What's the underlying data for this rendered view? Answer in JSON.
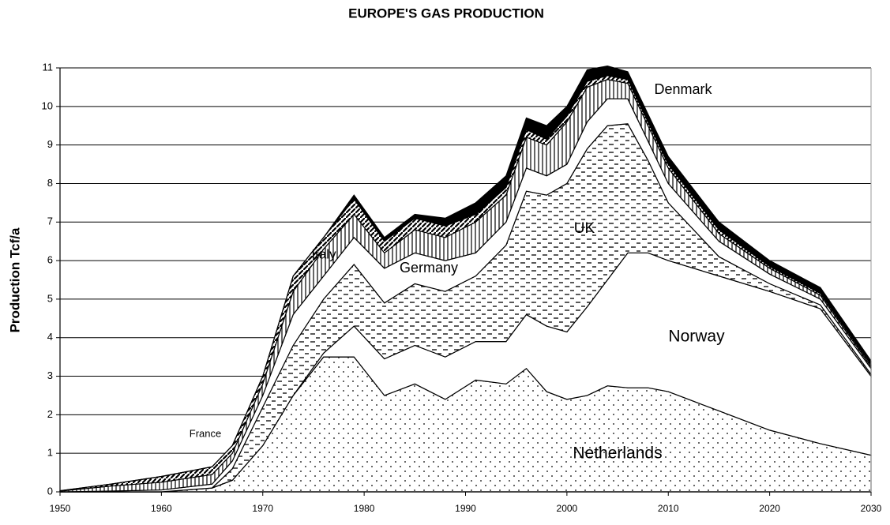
{
  "chart_data": {
    "type": "stacked_area",
    "title": "EUROPE'S GAS PRODUCTION",
    "y_label": "Production Tcf/a",
    "x": [
      1950,
      1955,
      1960,
      1965,
      1967,
      1970,
      1973,
      1976,
      1979,
      1982,
      1985,
      1988,
      1991,
      1994,
      1996,
      1998,
      2000,
      2002,
      2004,
      2006,
      2008,
      2010,
      2015,
      2020,
      2025,
      2030
    ],
    "series": [
      {
        "name": "Netherlands",
        "color": "#ffffff",
        "pattern": "dots",
        "values": [
          0,
          0,
          0,
          0.1,
          0.3,
          1.2,
          2.5,
          3.5,
          3.5,
          2.5,
          2.8,
          2.4,
          2.9,
          2.8,
          3.2,
          2.6,
          2.4,
          2.5,
          2.75,
          2.7,
          2.7,
          2.6,
          2.1,
          1.6,
          1.25,
          0.95
        ]
      },
      {
        "name": "Norway",
        "color": "#ffffff",
        "pattern": "none",
        "values": [
          0,
          0,
          0,
          0,
          0,
          0,
          0,
          0.1,
          0.8,
          0.95,
          1.0,
          1.1,
          1.0,
          1.1,
          1.4,
          1.7,
          1.75,
          2.3,
          2.75,
          3.5,
          3.5,
          3.4,
          3.5,
          3.6,
          3.5,
          2.05
        ]
      },
      {
        "name": "UK",
        "color": "#ffffff",
        "pattern": "dashes",
        "values": [
          0,
          0,
          0,
          0,
          0.3,
          1.0,
          1.3,
          1.4,
          1.6,
          1.45,
          1.6,
          1.7,
          1.7,
          2.5,
          3.2,
          3.4,
          3.85,
          4.1,
          4.0,
          3.35,
          2.4,
          1.5,
          0.5,
          0.2,
          0.1,
          0.05
        ]
      },
      {
        "name": "Germany",
        "color": "#ffffff",
        "pattern": "none",
        "values": [
          0,
          0.02,
          0.05,
          0.1,
          0.2,
          0.3,
          0.8,
          0.6,
          0.7,
          0.9,
          0.8,
          0.8,
          0.6,
          0.6,
          0.6,
          0.5,
          0.5,
          0.7,
          0.7,
          0.65,
          0.5,
          0.5,
          0.4,
          0.25,
          0.15,
          0.15
        ]
      },
      {
        "name": "Italy",
        "color": "#ffffff",
        "pattern": "vlines",
        "values": [
          0.02,
          0.13,
          0.2,
          0.25,
          0.2,
          0.3,
          0.6,
          0.7,
          0.6,
          0.4,
          0.6,
          0.6,
          0.8,
          0.7,
          0.8,
          0.8,
          1.1,
          0.9,
          0.5,
          0.4,
          0.4,
          0.4,
          0.2,
          0.15,
          0.1,
          0.05
        ]
      },
      {
        "name": "France",
        "color": "#000000",
        "pattern": "diag",
        "values": [
          0.01,
          0.05,
          0.15,
          0.2,
          0.2,
          0.2,
          0.4,
          0.3,
          0.4,
          0.3,
          0.3,
          0.3,
          0.2,
          0.2,
          0.2,
          0.15,
          0.15,
          0.15,
          0.1,
          0.1,
          0.1,
          0.1,
          0.1,
          0.05,
          0.05,
          0.05
        ]
      },
      {
        "name": "Denmark",
        "color": "#000000",
        "pattern": "solid",
        "values": [
          0,
          0,
          0,
          0,
          0,
          0,
          0,
          0,
          0.1,
          0.1,
          0.1,
          0.2,
          0.3,
          0.3,
          0.3,
          0.35,
          0.25,
          0.3,
          0.25,
          0.2,
          0.2,
          0.2,
          0.2,
          0.15,
          0.15,
          0.1
        ]
      }
    ],
    "xlim": [
      1950,
      2030
    ],
    "xticks": [
      1950,
      1960,
      1970,
      1980,
      1990,
      2000,
      2010,
      2020,
      2030
    ],
    "ylim": [
      0,
      11
    ],
    "yticks": [
      0,
      1,
      2,
      3,
      4,
      5,
      6,
      7,
      8,
      9,
      10,
      11
    ],
    "grid": true
  }
}
